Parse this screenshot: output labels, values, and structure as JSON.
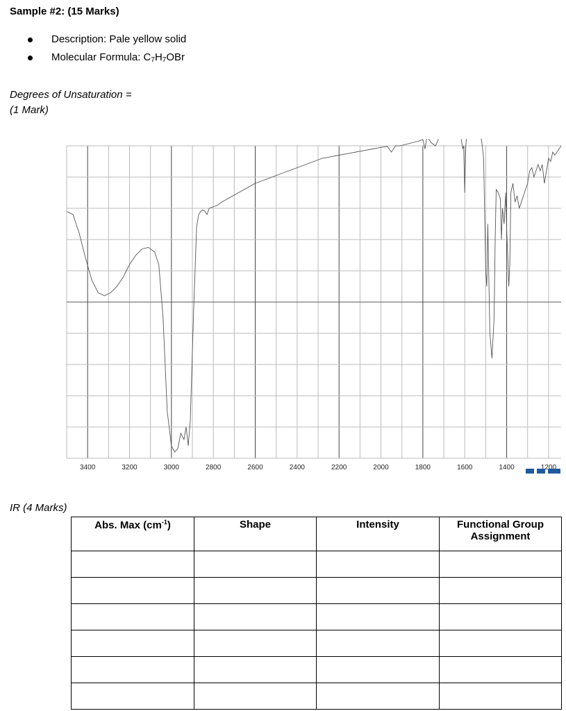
{
  "sample": {
    "heading": "Sample #2: (15 Marks)"
  },
  "bullets": {
    "description": "Description: Pale yellow solid",
    "formula_label": "Molecular Formula: ",
    "formula_c": "C",
    "formula_c_sub": "7",
    "formula_h": "H",
    "formula_h_sub": "7",
    "formula_rest": "OBr"
  },
  "unsaturation": {
    "line1": "Degrees of Unsaturation =",
    "line2": "(1 Mark)"
  },
  "chart_data": {
    "type": "line",
    "title": "",
    "xlabel": "",
    "ylabel": "",
    "x_reversed": true,
    "xlim": [
      3500,
      1140
    ],
    "ylim": [
      0,
      100
    ],
    "grid": true,
    "x_ticks": [
      3400,
      3200,
      3000,
      2800,
      2600,
      2400,
      2200,
      2000,
      1800,
      1600,
      1400,
      1200
    ],
    "series": [
      {
        "x": [
          3500,
          3470,
          3440,
          3410,
          3380,
          3350,
          3320,
          3290,
          3260,
          3230,
          3200,
          3170,
          3140,
          3110,
          3080,
          3060,
          3040,
          3020,
          3000,
          2985,
          2970,
          2955,
          2940,
          2930,
          2920,
          2910,
          2895,
          2880,
          2870,
          2860,
          2850,
          2840,
          2830,
          2820,
          2800,
          2780,
          2760,
          2720,
          2680,
          2640,
          2600,
          2560,
          2520,
          2480,
          2440,
          2400,
          2360,
          2320,
          2280,
          2240,
          2200,
          2160,
          2120,
          2080,
          2040,
          2000,
          1970,
          1950,
          1930,
          1910,
          1880,
          1850,
          1820,
          1800,
          1790,
          1780,
          1760,
          1740,
          1720,
          1700,
          1680,
          1660,
          1640,
          1620,
          1610,
          1605,
          1600,
          1595,
          1590,
          1575,
          1560,
          1540,
          1520,
          1510,
          1500,
          1495,
          1490,
          1480,
          1470,
          1460,
          1455,
          1450,
          1440,
          1430,
          1425,
          1420,
          1412,
          1405,
          1400,
          1395,
          1390,
          1385,
          1380,
          1370,
          1360,
          1350,
          1340,
          1330,
          1320,
          1310,
          1300,
          1290,
          1280,
          1270,
          1260,
          1250,
          1240,
          1230,
          1220,
          1210,
          1200,
          1190,
          1180,
          1170,
          1160,
          1150,
          1140
        ],
        "y": [
          79,
          78,
          72,
          64,
          57,
          53,
          52,
          53,
          55,
          58,
          62,
          65,
          67,
          67.5,
          66,
          62,
          45,
          15,
          4,
          2,
          3,
          8,
          6,
          10,
          4,
          12,
          45,
          74,
          78,
          79,
          79.5,
          79,
          78,
          80,
          80.5,
          81,
          82,
          83.5,
          85,
          86.5,
          88,
          89,
          90,
          91,
          92,
          93,
          94,
          95,
          96,
          96.5,
          97,
          97.5,
          98,
          98.5,
          99,
          99.5,
          99.8,
          98,
          100,
          100,
          100.5,
          101,
          101.5,
          102,
          99,
          103,
          101,
          100,
          103,
          103.5,
          103.5,
          104,
          104,
          104,
          99,
          100,
          85,
          100,
          104,
          104,
          104,
          103.5,
          102,
          96,
          60,
          55,
          75,
          40,
          32,
          45,
          70,
          86,
          85,
          83,
          70,
          80,
          75,
          85,
          73,
          65,
          55,
          62,
          85,
          88,
          82,
          84,
          80,
          82,
          84,
          86,
          88,
          92,
          93,
          90,
          92,
          94,
          92,
          94,
          88,
          92,
          96,
          95,
          98,
          97,
          98,
          99,
          100
        ]
      }
    ]
  },
  "ir": {
    "label": "IR (4 Marks)",
    "headers": [
      "Abs. Max (cm",
      "Shape",
      "Intensity",
      "Functional Group Assignment"
    ],
    "abs_sup": "-1",
    "abs_close": ")",
    "row_count": 6
  }
}
